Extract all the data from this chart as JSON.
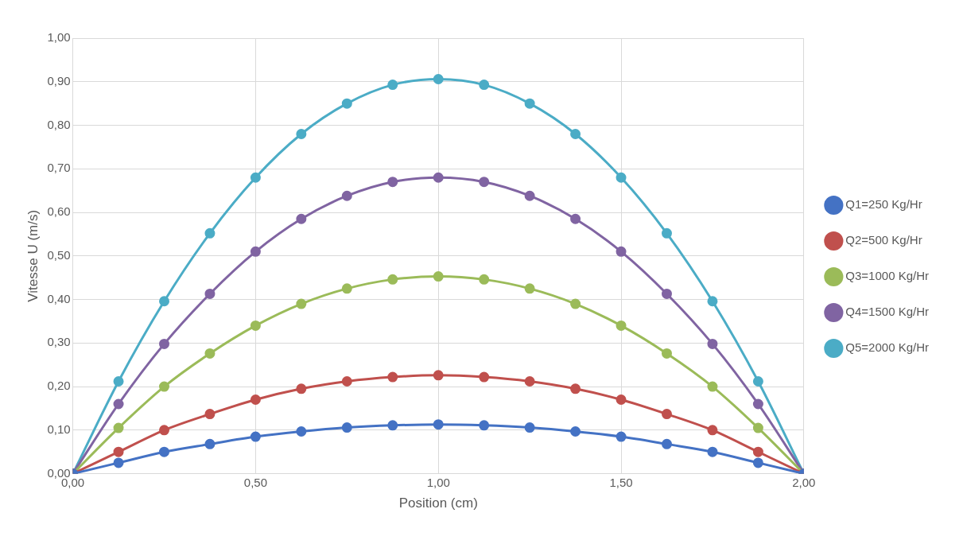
{
  "chart_data": {
    "type": "line",
    "xlabel": "Position (cm)",
    "ylabel": "Vitesse U (m/s)",
    "x": [
      0,
      0.125,
      0.25,
      0.375,
      0.5,
      0.625,
      0.75,
      0.875,
      1,
      1.125,
      1.25,
      1.375,
      1.5,
      1.625,
      1.75,
      1.875,
      2
    ],
    "series": [
      {
        "name": "Q1=250 Kg/Hr",
        "color": "#4472c4",
        "values": [
          0,
          0.025,
          0.05,
          0.068,
          0.085,
          0.097,
          0.106,
          0.111,
          0.113,
          0.111,
          0.106,
          0.097,
          0.085,
          0.068,
          0.05,
          0.025,
          0
        ]
      },
      {
        "name": "Q2=500 Kg/Hr",
        "color": "#c0504d",
        "values": [
          0,
          0.05,
          0.1,
          0.137,
          0.17,
          0.195,
          0.212,
          0.222,
          0.226,
          0.222,
          0.212,
          0.195,
          0.17,
          0.137,
          0.1,
          0.05,
          0
        ]
      },
      {
        "name": "Q3=1000 Kg/Hr",
        "color": "#9bbb59",
        "values": [
          0,
          0.105,
          0.2,
          0.276,
          0.34,
          0.39,
          0.425,
          0.446,
          0.453,
          0.446,
          0.425,
          0.39,
          0.34,
          0.276,
          0.2,
          0.105,
          0
        ]
      },
      {
        "name": "Q4=1500 Kg/Hr",
        "color": "#8064a2",
        "values": [
          0,
          0.16,
          0.298,
          0.413,
          0.51,
          0.585,
          0.638,
          0.67,
          0.68,
          0.67,
          0.638,
          0.585,
          0.51,
          0.413,
          0.298,
          0.16,
          0
        ]
      },
      {
        "name": "Q5=2000 Kg/Hr",
        "color": "#4bacc6",
        "values": [
          0,
          0.212,
          0.396,
          0.552,
          0.68,
          0.78,
          0.85,
          0.893,
          0.906,
          0.893,
          0.85,
          0.78,
          0.68,
          0.552,
          0.396,
          0.212,
          0
        ]
      }
    ],
    "xlim": [
      0,
      2
    ],
    "xticks": [
      {
        "value": 0,
        "label": "0,00"
      },
      {
        "value": 0.5,
        "label": "0,50"
      },
      {
        "value": 1,
        "label": "1,00"
      },
      {
        "value": 1.5,
        "label": "1,50"
      },
      {
        "value": 2,
        "label": "2,00"
      }
    ],
    "ylim": [
      0,
      1
    ],
    "yticks": [
      {
        "value": 0,
        "label": "0,00"
      },
      {
        "value": 0.1,
        "label": "0,10"
      },
      {
        "value": 0.2,
        "label": "0,20"
      },
      {
        "value": 0.3,
        "label": "0,30"
      },
      {
        "value": 0.4,
        "label": "0,40"
      },
      {
        "value": 0.5,
        "label": "0,50"
      },
      {
        "value": 0.6,
        "label": "0,60"
      },
      {
        "value": 0.7,
        "label": "0,70"
      },
      {
        "value": 0.8,
        "label": "0,80"
      },
      {
        "value": 0.9,
        "label": "0,90"
      },
      {
        "value": 1,
        "label": "1,00"
      }
    ],
    "grid": true,
    "legend": "right",
    "marker": "circle",
    "line_style": "solid"
  }
}
